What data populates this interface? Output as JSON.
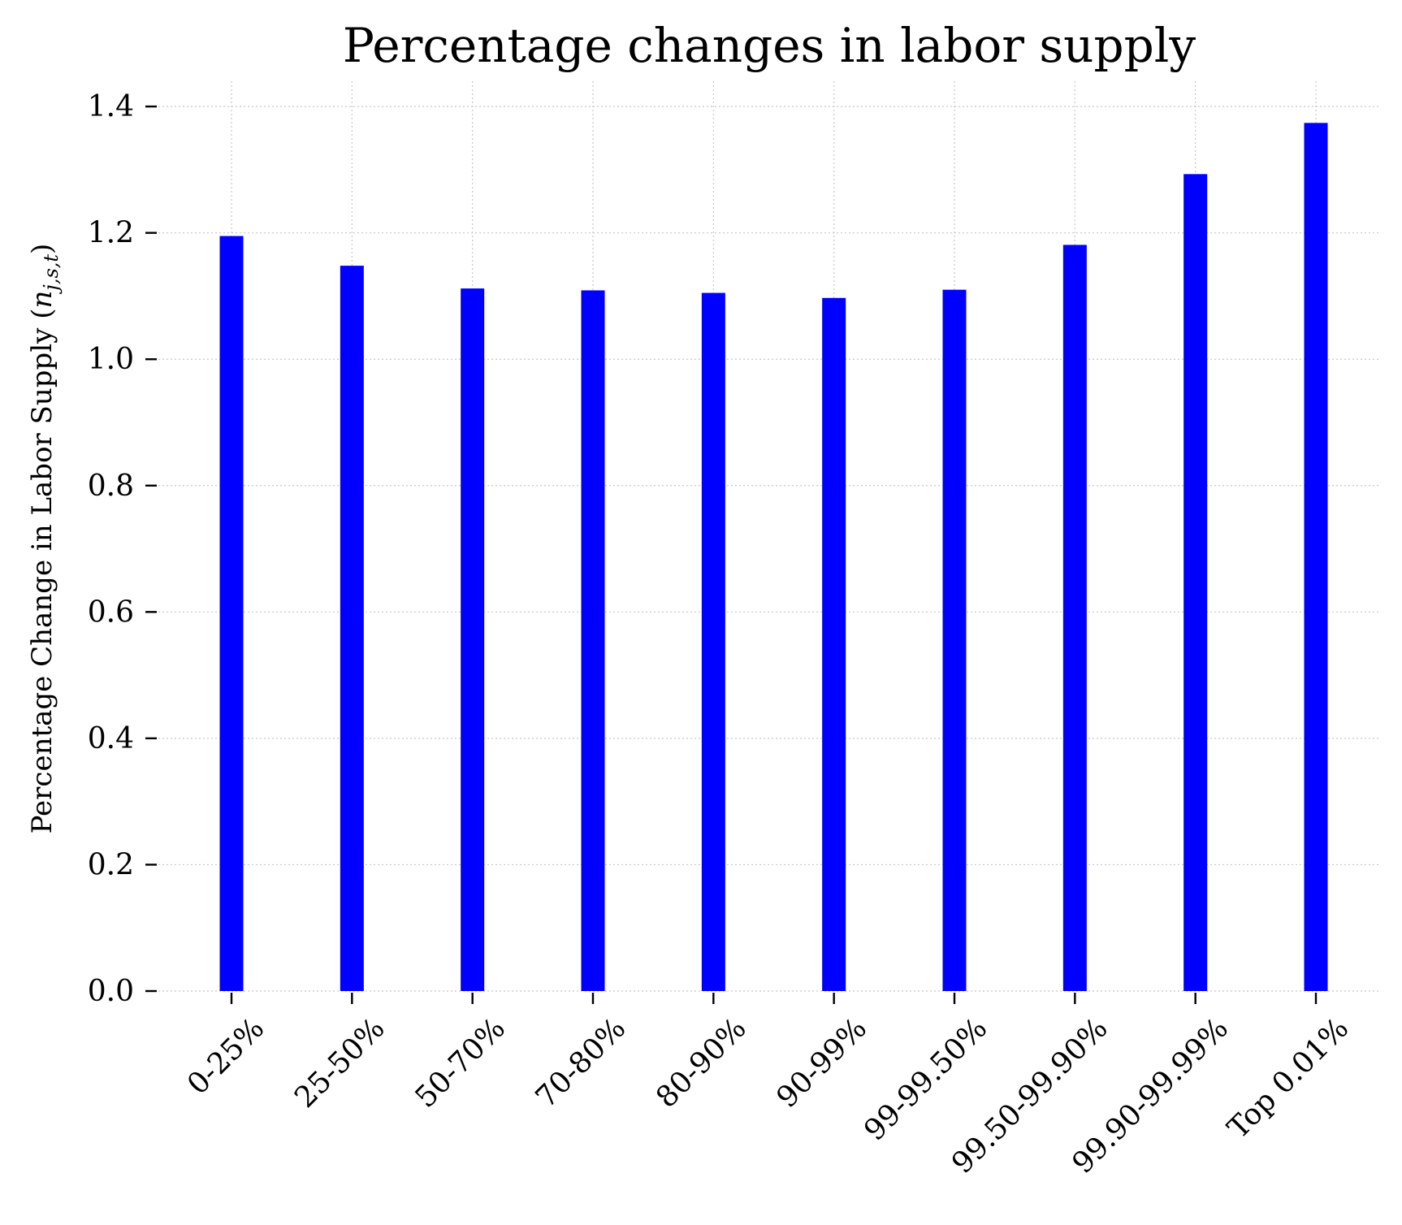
{
  "chart_data": {
    "type": "bar",
    "title": "Percentage changes in labor supply",
    "xlabel": "",
    "ylabel": "Percentage Change in Labor Supply (",
    "ylabel_math": {
      "base": "n",
      "subscript": "j,s,t"
    },
    "ylabel_close": ")",
    "categories": [
      "0-25%",
      "25-50%",
      "50-70%",
      "70-80%",
      "80-90%",
      "90-99%",
      "99-99.50%",
      "99.50-99.90%",
      "99.90-99.99%",
      "Top 0.01%"
    ],
    "values": [
      1.195,
      1.148,
      1.112,
      1.109,
      1.105,
      1.097,
      1.11,
      1.181,
      1.293,
      1.374
    ],
    "ylim": [
      0,
      1.44
    ],
    "yticks": [
      "0.0",
      "0.2",
      "0.4",
      "0.6",
      "0.8",
      "1.0",
      "1.2",
      "1.4"
    ],
    "grid": true,
    "legend": "none",
    "colors": {
      "bar": "#0000ff"
    }
  }
}
